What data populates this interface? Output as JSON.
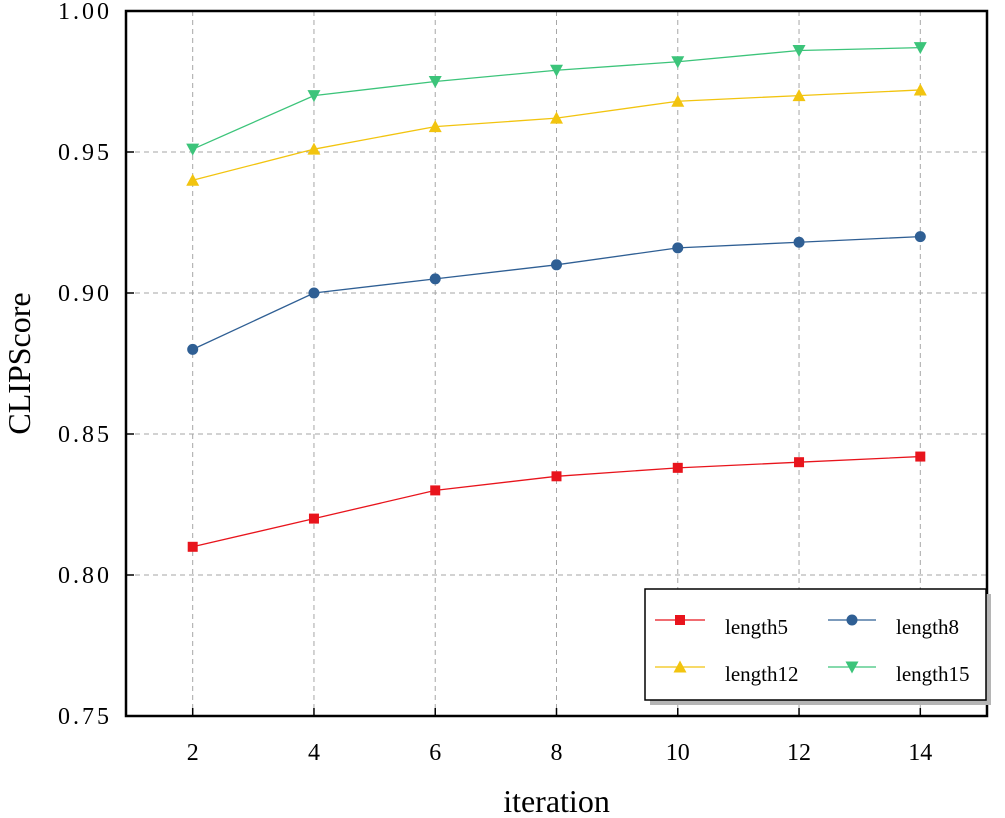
{
  "chart_data": {
    "type": "line",
    "xlabel": "iteration",
    "ylabel": "CLIPScore",
    "x": [
      2,
      4,
      6,
      8,
      10,
      12,
      14
    ],
    "xlim": [
      0.9,
      15.1
    ],
    "ylim": [
      0.75,
      1.0
    ],
    "xticks": [
      "2",
      "4",
      "6",
      "8",
      "10",
      "12",
      "14"
    ],
    "yticks": [
      {
        "value": 0.75,
        "label": "0.75"
      },
      {
        "value": 0.8,
        "label": "0.80"
      },
      {
        "value": 0.85,
        "label": "0.85"
      },
      {
        "value": 0.9,
        "label": "0.90"
      },
      {
        "value": 0.95,
        "label": "0.95"
      },
      {
        "value": 1.0,
        "label": "1.00"
      }
    ],
    "grid": true,
    "legend_position": "bottom-right",
    "series": [
      {
        "name": "length5",
        "color": "#e8141c",
        "marker": "square",
        "values": [
          0.81,
          0.82,
          0.83,
          0.835,
          0.838,
          0.84,
          0.842
        ]
      },
      {
        "name": "length8",
        "color": "#2f5f94",
        "marker": "circle",
        "values": [
          0.88,
          0.9,
          0.905,
          0.91,
          0.916,
          0.918,
          0.92
        ]
      },
      {
        "name": "length12",
        "color": "#f2c40f",
        "marker": "triangle-up",
        "values": [
          0.94,
          0.951,
          0.959,
          0.962,
          0.968,
          0.97,
          0.972
        ]
      },
      {
        "name": "length15",
        "color": "#3cc47a",
        "marker": "triangle-down",
        "values": [
          0.951,
          0.97,
          0.975,
          0.979,
          0.982,
          0.986,
          0.987
        ]
      }
    ],
    "legend_order": [
      "length5",
      "length8",
      "length12",
      "length15"
    ]
  }
}
